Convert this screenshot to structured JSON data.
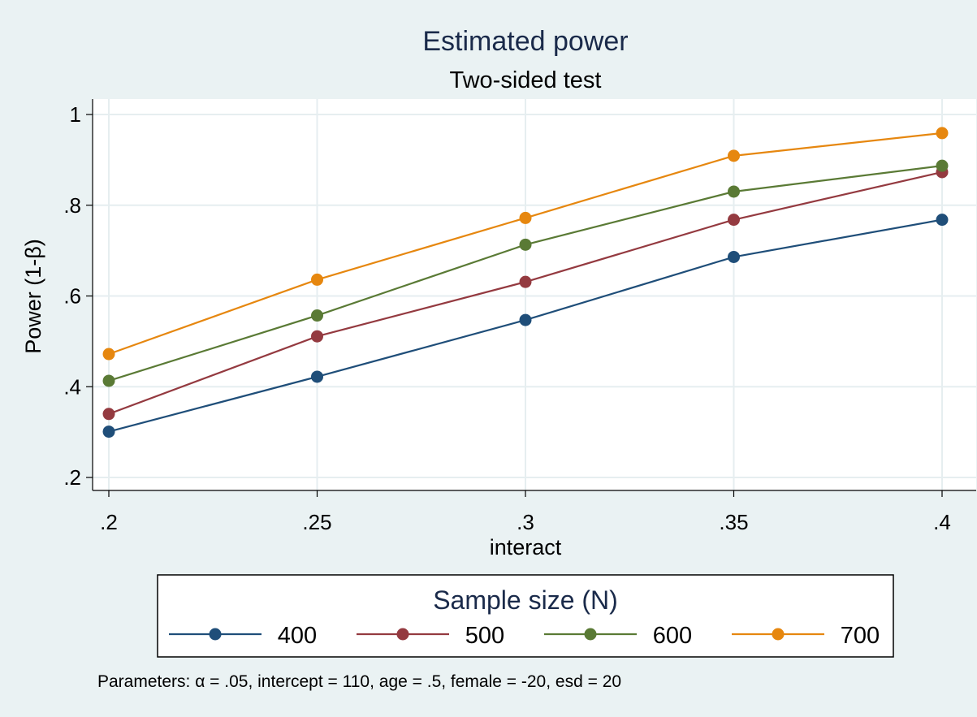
{
  "chart_data": {
    "type": "line",
    "title": "Estimated power",
    "subtitle": "Two-sided test",
    "xlabel": "interact",
    "ylabel": "Power (1-β)",
    "x": [
      0.2,
      0.25,
      0.3,
      0.35,
      0.4
    ],
    "x_tick_labels": [
      ".2",
      ".25",
      ".3",
      ".35",
      ".4"
    ],
    "y_ticks": [
      0.2,
      0.4,
      0.6,
      0.8,
      1
    ],
    "y_tick_labels": [
      ".2",
      ".4",
      ".6",
      ".8",
      "1"
    ],
    "xlim": [
      0.2,
      0.4
    ],
    "ylim": [
      0.2,
      1.0
    ],
    "grid": true,
    "legend_title": "Sample size (N)",
    "legend_position": "bottom",
    "series": [
      {
        "name": "400",
        "color": "#1f4e79",
        "values": [
          0.301,
          0.422,
          0.547,
          0.686,
          0.768
        ]
      },
      {
        "name": "500",
        "color": "#943a40",
        "values": [
          0.34,
          0.511,
          0.631,
          0.768,
          0.873
        ]
      },
      {
        "name": "600",
        "color": "#5a7a35",
        "values": [
          0.413,
          0.557,
          0.713,
          0.83,
          0.887
        ]
      },
      {
        "name": "700",
        "color": "#e6870f",
        "values": [
          0.472,
          0.636,
          0.772,
          0.909,
          0.959
        ]
      }
    ],
    "note": "Parameters: α = .05, intercept = 110, age = .5, female = -20, esd = 20"
  }
}
